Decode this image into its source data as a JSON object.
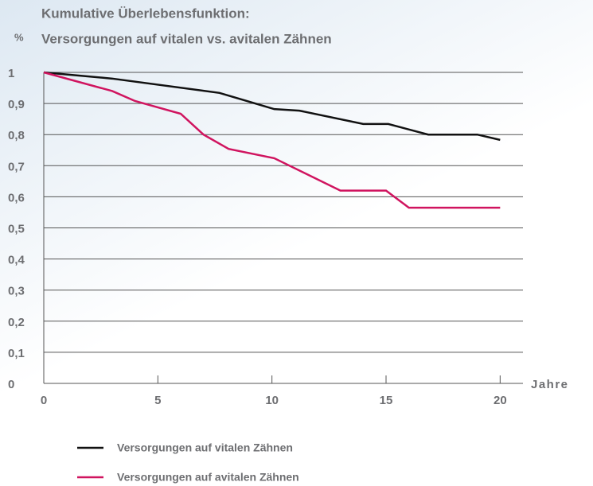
{
  "chart_data": {
    "type": "line",
    "title_lines": [
      "Kumulative Überlebensfunktion:",
      "Versorgungen auf vitalen vs. avitalen Zähnen"
    ],
    "ylabel": "%",
    "xlabel": "Jahre",
    "xlim": [
      0,
      21
    ],
    "ylim": [
      0,
      1
    ],
    "xticks": [
      0,
      5,
      10,
      15,
      20
    ],
    "yticks": [
      0,
      {
        "value": 0.1,
        "label": "0,1"
      },
      {
        "value": 0.2,
        "label": "0,2"
      },
      {
        "value": 0.3,
        "label": "0,3"
      },
      {
        "value": 0.4,
        "label": "0,4"
      },
      {
        "value": 0.5,
        "label": "0,5"
      },
      {
        "value": 0.6,
        "label": "0,6"
      },
      {
        "value": 0.7,
        "label": "0,7"
      },
      {
        "value": 0.8,
        "label": "0,8"
      },
      {
        "value": 0.9,
        "label": "0,9"
      },
      1
    ],
    "grid": true,
    "series": [
      {
        "name": "Versorgungen auf vitalen Zähnen",
        "color": "#111111",
        "x": [
          0,
          3,
          7.7,
          10.1,
          11.2,
          14,
          15.1,
          16.85,
          19,
          20
        ],
        "values": [
          1,
          0.98,
          0.934,
          0.882,
          0.877,
          0.834,
          0.834,
          0.8,
          0.8,
          0.783
        ]
      },
      {
        "name": "Versorgungen auf avitalen Zähnen",
        "color": "#d0145f",
        "x": [
          0,
          3,
          4,
          6,
          7,
          8.1,
          10.1,
          13,
          15,
          16,
          20
        ],
        "values": [
          1,
          0.94,
          0.908,
          0.867,
          0.8,
          0.754,
          0.724,
          0.62,
          0.62,
          0.565,
          0.565
        ]
      }
    ]
  }
}
